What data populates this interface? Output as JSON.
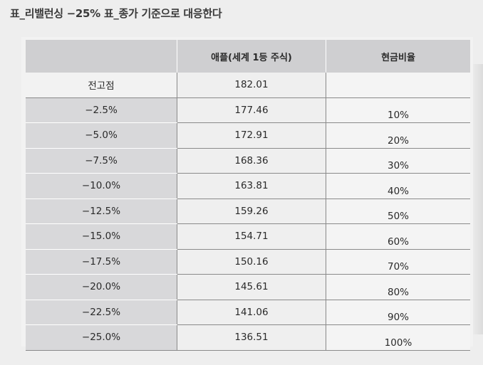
{
  "caption": "표_리밸런싱 −25% 표_종가 기준으로 대응한다",
  "table": {
    "headers": [
      "",
      "애플(세계 1등 주식)",
      "현금비율"
    ],
    "rows": [
      {
        "label": "전고점",
        "price": "182.01",
        "cash": ""
      },
      {
        "label": "−2.5%",
        "price": "177.46",
        "cash": "10%"
      },
      {
        "label": "−5.0%",
        "price": "172.91",
        "cash": "20%"
      },
      {
        "label": "−7.5%",
        "price": "168.36",
        "cash": "30%"
      },
      {
        "label": "−10.0%",
        "price": "163.81",
        "cash": "40%"
      },
      {
        "label": "−12.5%",
        "price": "159.26",
        "cash": "50%"
      },
      {
        "label": "−15.0%",
        "price": "154.71",
        "cash": "60%"
      },
      {
        "label": "−17.5%",
        "price": "150.16",
        "cash": "70%"
      },
      {
        "label": "−20.0%",
        "price": "145.61",
        "cash": "80%"
      },
      {
        "label": "−22.5%",
        "price": "141.06",
        "cash": "90%"
      },
      {
        "label": "−25.0%",
        "price": "136.51",
        "cash": "100%"
      }
    ]
  }
}
